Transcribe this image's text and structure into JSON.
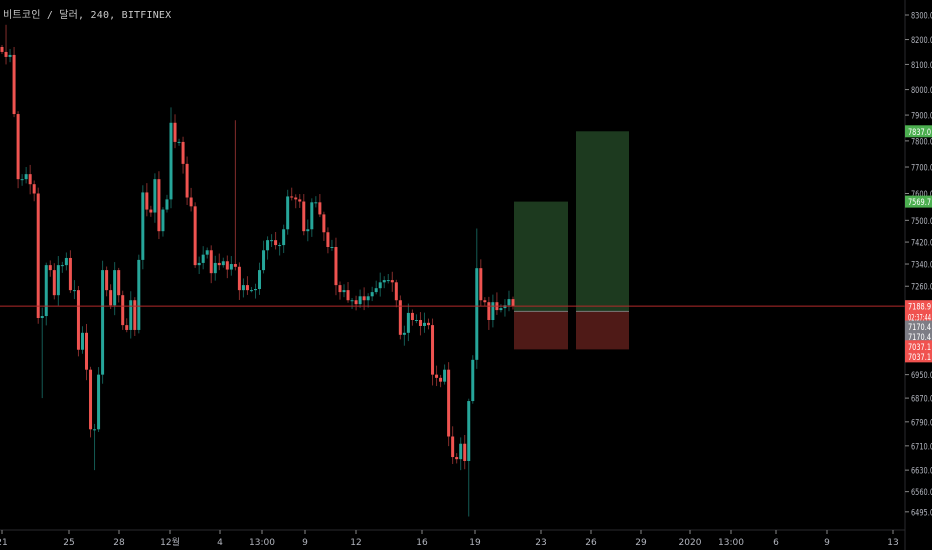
{
  "header": {
    "title": "비트코인 / 달러, 240, BITFINEX"
  },
  "colors": {
    "up": "#26a69a",
    "down": "#ef5350",
    "background": "#000000",
    "axis_text": "#b2b5be",
    "price_line": "#b22a2a",
    "profit_zone": "#1d3a1f",
    "loss_zone": "#4f1a17",
    "entry_line": "#7a7a7a",
    "tag_green": "#4caf50",
    "tag_red": "#f0524f",
    "tag_gray": "#7d7d85"
  },
  "chart_data": {
    "type": "candlestick",
    "symbol": "비트코인 / 달러",
    "interval": "240",
    "exchange": "BITFINEX",
    "y_scale": "log",
    "ylim": [
      6470,
      8330
    ],
    "grid": false,
    "first_open": 8170,
    "closes": [
      8150,
      8130,
      8138,
      7904,
      7654,
      7654,
      7673,
      7635,
      7600,
      7147,
      7154,
      7336,
      7318,
      7228,
      7336,
      7336,
      7362,
      7246,
      7246,
      7036,
      7095,
      6967,
      6765,
      6765,
      6950,
      7318,
      7246,
      7192,
      7318,
      7228,
      7122,
      7105,
      7210,
      7105,
      7355,
      7604,
      7540,
      7529,
      7654,
      7460,
      7540,
      7578,
      7870,
      7796,
      7796,
      7712,
      7585,
      7552,
      7336,
      7344,
      7374,
      7390,
      7307,
      7344,
      7336,
      7350,
      7320,
      7340,
      7330,
      7246,
      7264,
      7246,
      7246,
      7250,
      7318,
      7390,
      7427,
      7427,
      7409,
      7409,
      7467,
      7589,
      7585,
      7578,
      7570,
      7460,
      7467,
      7567,
      7567,
      7522,
      7456,
      7402,
      7402,
      7264,
      7239,
      7246,
      7210,
      7210,
      7196,
      7224,
      7210,
      7224,
      7239,
      7253,
      7274,
      7282,
      7282,
      7274,
      7210,
      7088,
      7095,
      7165,
      7140,
      7140,
      7119,
      7130,
      7122,
      6950,
      6939,
      6926,
      6967,
      6741,
      6673,
      6666,
      6717,
      6660,
      6860,
      7001,
      7325,
      7210,
      7203,
      7140,
      7203,
      7175,
      7182,
      7192,
      7214,
      7189
    ],
    "wick_extremes": [
      {
        "index": 1,
        "high": 8260
      },
      {
        "index": 10,
        "low": 6870
      },
      {
        "index": 23,
        "low": 6630
      },
      {
        "index": 42,
        "high": 7930
      },
      {
        "index": 58,
        "high": 7880
      },
      {
        "index": 116,
        "low": 6480
      },
      {
        "index": 118,
        "high": 7470
      }
    ],
    "price_axis_ticks": [
      8300,
      8200,
      8100,
      8000,
      7900,
      7800,
      7700,
      7600,
      7500,
      7420,
      7340,
      7260,
      6950,
      6870,
      6790,
      6710,
      6630,
      6560,
      6495
    ],
    "price_axis_tick_labels": [
      "8300.0",
      "8200.0",
      "8100.0",
      "8000.0",
      "7900.0",
      "7800.0",
      "7700.0",
      "7600.0",
      "7500.0",
      "7420.0",
      "7340.0",
      "7260.0",
      "6950.0",
      "6870.0",
      "6790.0",
      "6710.0",
      "6630.0",
      "6560.0",
      "6495.0"
    ],
    "time_axis_labels": [
      "21",
      "25",
      "28",
      "12월",
      "4",
      "13:00",
      "9",
      "12",
      "16",
      "19",
      "23",
      "26",
      "29",
      "2020",
      "13:00",
      "6",
      "9",
      "13"
    ],
    "current_price": 7188.9,
    "countdown": "02:37:44",
    "positions": [
      {
        "type": "long",
        "target": 7569.7,
        "entry": 7170.4,
        "stop": 7037.1
      },
      {
        "type": "long",
        "target": 7837.0,
        "entry": 7170.4,
        "stop": 7037.1
      }
    ],
    "axis_tags": [
      {
        "label": "7837.0",
        "price": 7837.0,
        "color": "green"
      },
      {
        "label": "7569.7",
        "price": 7569.7,
        "color": "green"
      },
      {
        "label": "7188.9",
        "price": 7188.9,
        "color": "red"
      },
      {
        "label": "02:37:44",
        "price": 7150,
        "color": "red"
      },
      {
        "label": "7170.4",
        "price": 7117,
        "color": "gray"
      },
      {
        "label": "7170.4",
        "price": 7082,
        "color": "gray"
      },
      {
        "label": "7037.1",
        "price": 7048,
        "color": "red"
      },
      {
        "label": "7037.1",
        "price": 7013,
        "color": "red"
      }
    ]
  }
}
